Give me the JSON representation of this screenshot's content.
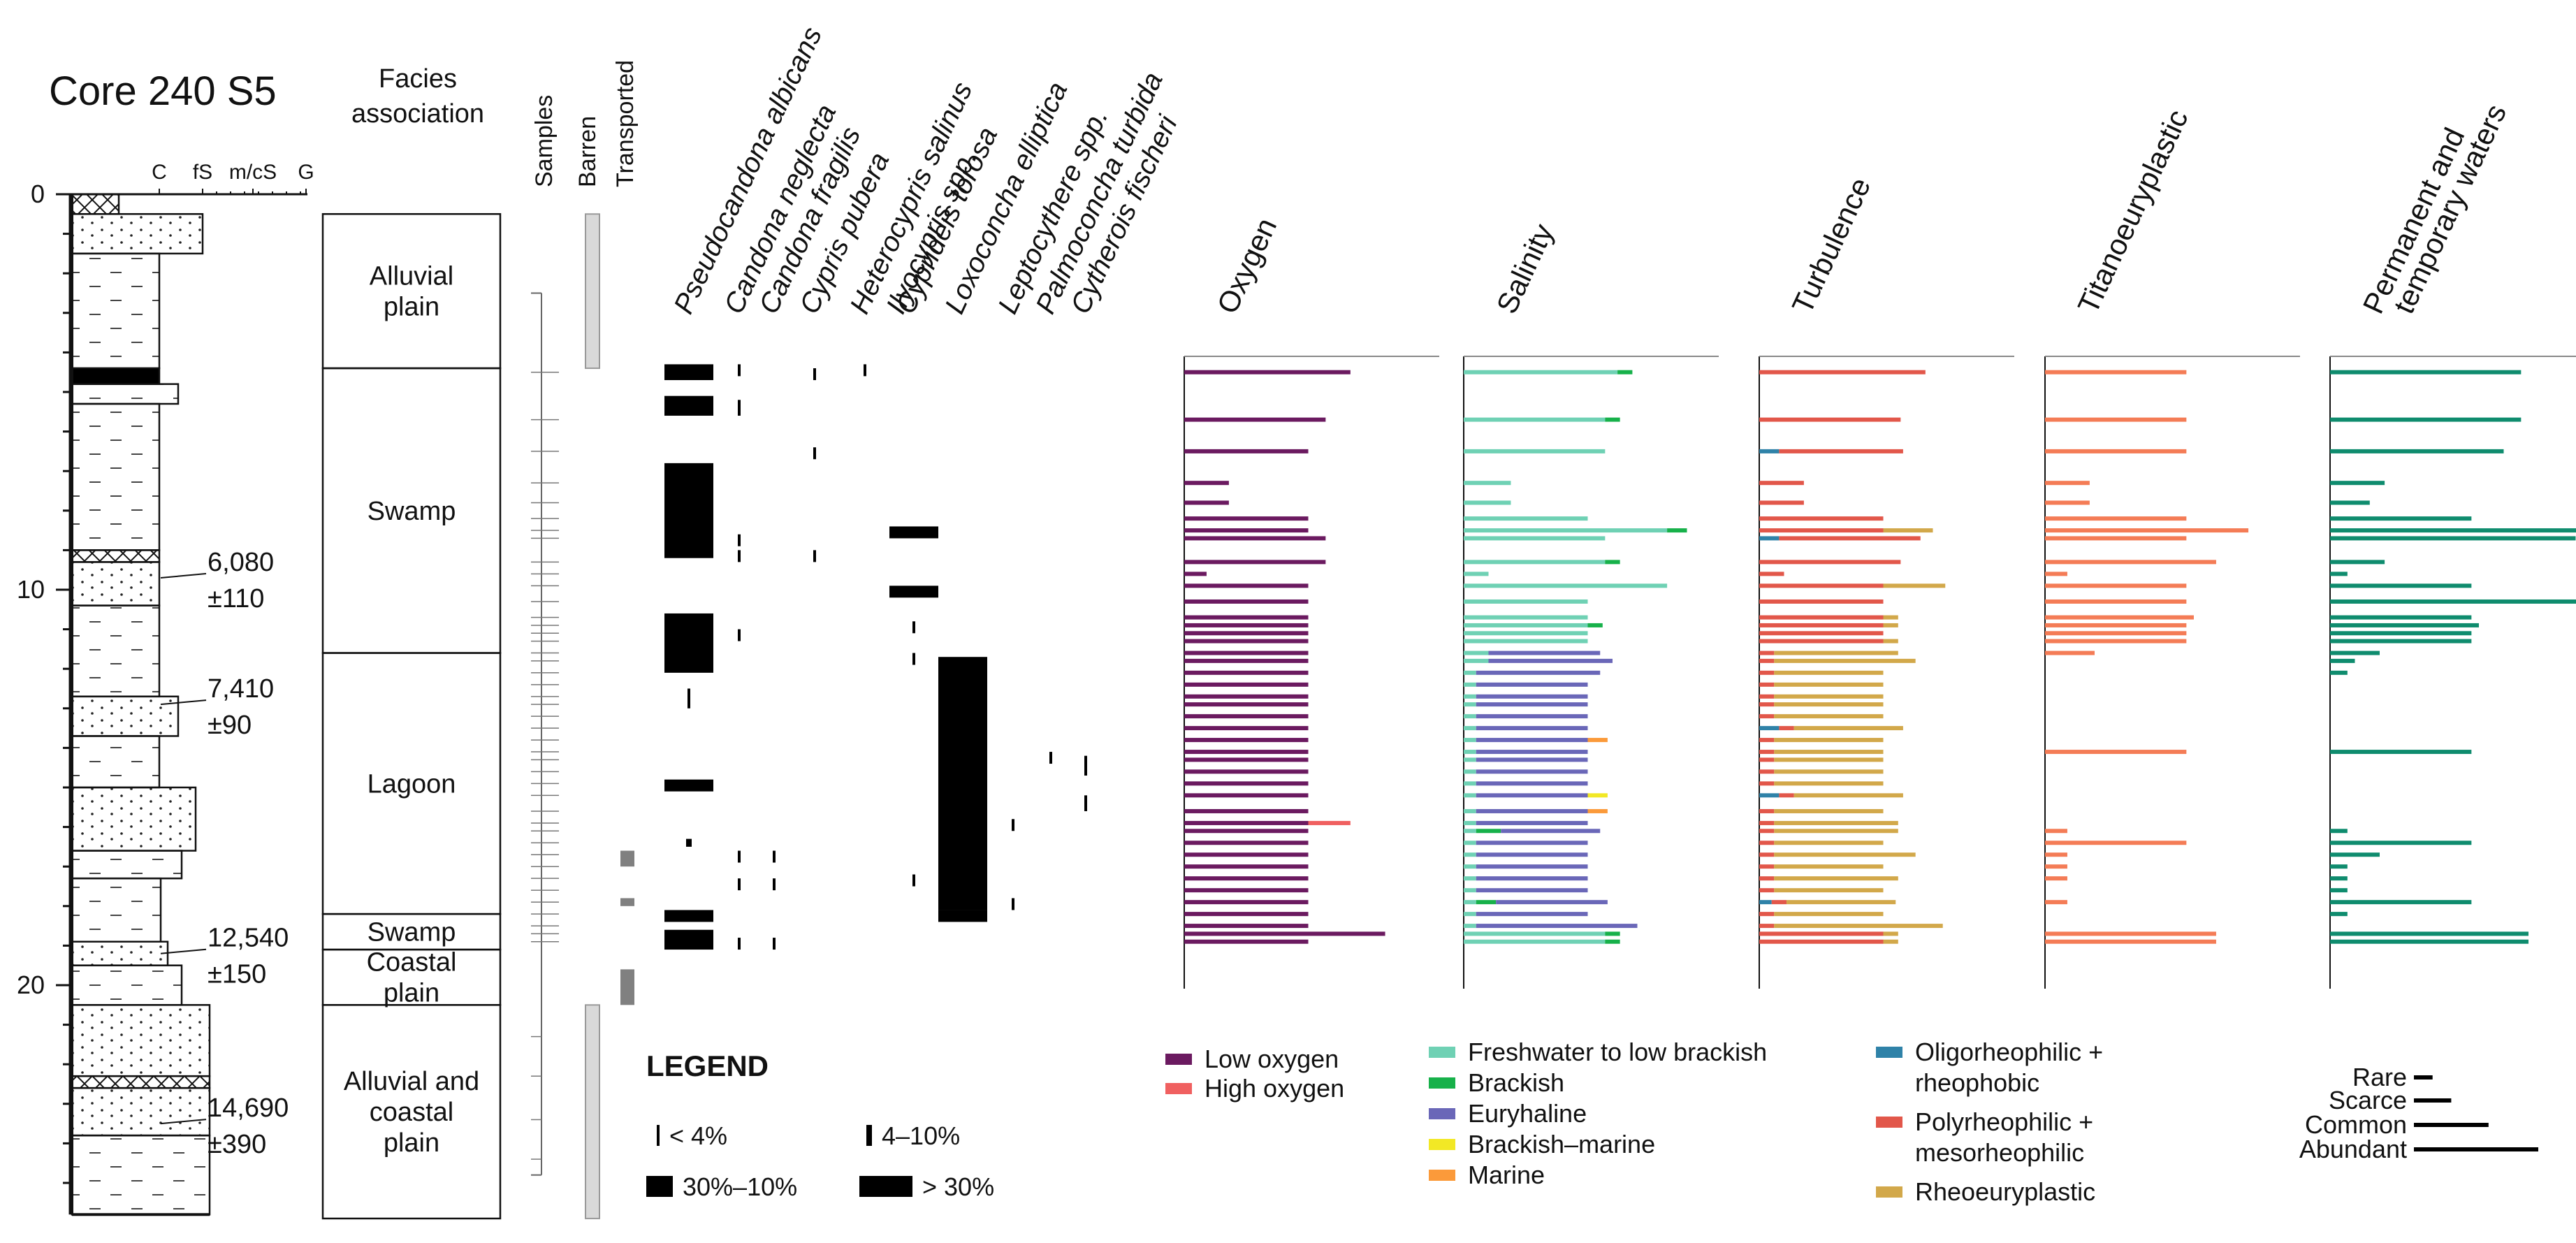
{
  "chart_data": {
    "type": "bar",
    "title": "Core 240 S5",
    "core_depth_axis": {
      "ylim": [
        0,
        25.5
      ],
      "ticks": [
        "0",
        "10",
        "20"
      ],
      "tick_values": [
        0,
        10,
        20
      ]
    },
    "grain_scale": [
      "C",
      "fS",
      "m/cS",
      "G"
    ],
    "radiocarbon_dates": [
      {
        "age": "6,080",
        "error": "±110",
        "depth": 9.7
      },
      {
        "age": "7,410",
        "error": "±90",
        "depth": 12.9
      },
      {
        "age": "12,540",
        "error": "±150",
        "depth": 19.2
      },
      {
        "age": "14,690",
        "error": "±390",
        "depth": 23.5
      }
    ],
    "facies_header": "Facies association",
    "facies": [
      {
        "name": "Alluvial plain",
        "lines": [
          "Alluvial",
          "plain"
        ],
        "top": 0.5,
        "bottom": 4.4
      },
      {
        "name": "Swamp",
        "lines": [
          "Swamp"
        ],
        "top": 4.4,
        "bottom": 11.6
      },
      {
        "name": "Lagoon",
        "lines": [
          "Lagoon"
        ],
        "top": 11.6,
        "bottom": 18.2
      },
      {
        "name": "Swamp",
        "lines": [
          "Swamp"
        ],
        "top": 18.2,
        "bottom": 19.1
      },
      {
        "name": "Coastal plain",
        "lines": [
          "Coastal",
          "plain"
        ],
        "top": 19.1,
        "bottom": 20.5
      },
      {
        "name": "Alluvial and coastal plain",
        "lines": [
          "Alluvial and",
          "coastal",
          "plain"
        ],
        "top": 20.5,
        "bottom": 25.9
      }
    ],
    "column_headers": [
      "Samples",
      "Barren",
      "Transported"
    ],
    "barren_intervals": [
      [
        0.5,
        4.4
      ],
      [
        20.5,
        25.9
      ]
    ],
    "transported_intervals": [
      [
        16.6,
        17.0
      ],
      [
        17.8,
        18.0
      ],
      [
        19.6,
        20.5
      ]
    ],
    "samples_range": [
      2.5,
      24.8
    ],
    "species": [
      {
        "name": "Pseudocandona albicans",
        "intervals": [
          [
            4.3,
            4.7,
            3
          ],
          [
            5.1,
            5.6,
            3
          ],
          [
            6.8,
            9.2,
            3
          ],
          [
            10.6,
            12.1,
            3
          ],
          [
            12.5,
            13.0,
            1
          ],
          [
            14.8,
            15.1,
            3
          ],
          [
            16.3,
            16.5,
            2
          ],
          [
            18.1,
            18.4,
            3
          ],
          [
            18.6,
            19.1,
            3
          ]
        ]
      },
      {
        "name": "Candona neglecta",
        "intervals": [
          [
            4.3,
            4.6,
            1
          ],
          [
            5.2,
            5.6,
            1
          ],
          [
            8.6,
            8.9,
            1
          ],
          [
            9.0,
            9.3,
            1
          ],
          [
            11.0,
            11.3,
            1
          ],
          [
            16.6,
            16.9,
            1
          ],
          [
            17.3,
            17.6,
            1
          ],
          [
            18.8,
            19.1,
            1
          ]
        ]
      },
      {
        "name": "Candona fragilis",
        "intervals": [
          [
            16.6,
            16.9,
            1
          ],
          [
            17.3,
            17.6,
            1
          ],
          [
            18.8,
            19.1,
            1
          ]
        ]
      },
      {
        "name": "Cypris pubera",
        "intervals": [
          [
            4.4,
            4.7,
            1
          ],
          [
            6.4,
            6.7,
            1
          ],
          [
            9.0,
            9.3,
            1
          ]
        ]
      },
      {
        "name": "Heterocypris salinus",
        "intervals": [
          [
            4.3,
            4.6,
            1
          ]
        ]
      },
      {
        "name": "Ilyocypris spp.",
        "intervals": []
      },
      {
        "name": "Cyprideis torosa",
        "intervals": [
          [
            8.4,
            8.7,
            3
          ],
          [
            9.9,
            10.2,
            3
          ],
          [
            10.8,
            11.1,
            1
          ],
          [
            11.6,
            11.9,
            1
          ],
          [
            17.2,
            17.5,
            1
          ]
        ]
      },
      {
        "name": "Loxoconcha elliptica",
        "intervals": [
          [
            11.7,
            18.1,
            3
          ],
          [
            18.1,
            18.4,
            3
          ]
        ]
      },
      {
        "name": "Leptocythere spp.",
        "intervals": [
          [
            15.8,
            16.1,
            1
          ],
          [
            17.8,
            18.1,
            1
          ]
        ]
      },
      {
        "name": "Palmoconcha turbida",
        "intervals": [
          [
            14.1,
            14.4,
            1
          ]
        ]
      },
      {
        "name": "Cytherois fischeri",
        "intervals": [
          [
            14.2,
            14.7,
            1
          ],
          [
            15.2,
            15.6,
            1
          ]
        ]
      }
    ],
    "panels": [
      {
        "title": "Oxygen",
        "title_lines": [
          "Oxygen"
        ],
        "categories": [
          "Low oxygen",
          "High oxygen"
        ],
        "colors": [
          "#6b1a60",
          "#f06060"
        ]
      },
      {
        "title": "Salinity",
        "title_lines": [
          "Salinity"
        ],
        "categories": [
          "Freshwater to low brackish",
          "Brackish",
          "Euryhaline",
          "Brackish–marine",
          "Marine"
        ],
        "colors": [
          "#6fd1b4",
          "#17b14a",
          "#6a67b8",
          "#f2e825",
          "#fb9a3a"
        ]
      },
      {
        "title": "Turbulence",
        "title_lines": [
          "Turbulence"
        ],
        "categories": [
          "Oligorheophilic + rheophobic",
          "Polyrheophilic + mesorheophilic",
          "Rheoeuryplastic"
        ],
        "colors": [
          "#2f82a8",
          "#e2574a",
          "#d2a84a"
        ]
      },
      {
        "title": "Titanoeuryplastic",
        "title_lines": [
          "Titanoeuryplastic"
        ],
        "categories": [
          "Titanoeuryplastic"
        ],
        "colors": [
          "#f47c56"
        ]
      },
      {
        "title": "Permanent and temporary waters",
        "title_lines": [
          "Permanent and",
          "temporary waters"
        ],
        "categories": [
          "Permanent and temporary waters"
        ],
        "colors": [
          "#0f8c6e"
        ]
      }
    ],
    "sample_depths": [
      4.5,
      5.7,
      6.5,
      7.3,
      7.8,
      8.2,
      8.5,
      8.7,
      9.3,
      9.6,
      9.9,
      10.3,
      10.7,
      10.9,
      11.1,
      11.3,
      11.6,
      11.8,
      12.1,
      12.4,
      12.7,
      12.9,
      13.2,
      13.5,
      13.8,
      14.1,
      14.3,
      14.6,
      14.9,
      15.2,
      15.6,
      15.9,
      16.1,
      16.4,
      16.7,
      17.0,
      17.3,
      17.6,
      17.9,
      18.2,
      18.5,
      18.7,
      18.9
    ],
    "oxygen_series": [
      {
        "name": "Low oxygen",
        "values": [
          0.67,
          0.57,
          0.5,
          0.18,
          0.18,
          0.5,
          0.5,
          0.57,
          0.57,
          0.09,
          0.5,
          0.5,
          0.5,
          0.5,
          0.5,
          0.5,
          0.5,
          0.5,
          0.5,
          0.5,
          0.5,
          0.5,
          0.5,
          0.5,
          0.5,
          0.5,
          0.5,
          0.5,
          0.5,
          0.5,
          0.5,
          0.5,
          0.5,
          0.5,
          0.5,
          0.5,
          0.5,
          0.5,
          0.5,
          0.5,
          0.5,
          0.81,
          0.5
        ]
      },
      {
        "name": "High oxygen",
        "values": [
          0,
          0,
          0,
          0,
          0,
          0,
          0,
          0,
          0,
          0,
          0,
          0,
          0,
          0,
          0,
          0,
          0,
          0,
          0,
          0,
          0,
          0,
          0,
          0,
          0,
          0,
          0,
          0,
          0,
          0,
          0,
          0.17,
          0,
          0,
          0,
          0,
          0,
          0,
          0,
          0,
          0,
          0,
          0
        ]
      }
    ],
    "salinity_series": [
      {
        "name": "Freshwater to low brackish",
        "values": [
          0.62,
          0.57,
          0.57,
          0.19,
          0.19,
          0.5,
          0.82,
          0.57,
          0.57,
          0.1,
          0.82,
          0.5,
          0.5,
          0.5,
          0.5,
          0.5,
          0.1,
          0.1,
          0.05,
          0.05,
          0.05,
          0.05,
          0.05,
          0.05,
          0.05,
          0.05,
          0.05,
          0.05,
          0.05,
          0.05,
          0.05,
          0.05,
          0.05,
          0.05,
          0.05,
          0.05,
          0.05,
          0.05,
          0.05,
          0.05,
          0.05,
          0.57,
          0.57
        ]
      },
      {
        "name": "Brackish",
        "values": [
          0.06,
          0.06,
          0,
          0,
          0,
          0,
          0.08,
          0,
          0.06,
          0,
          0,
          0,
          0,
          0.06,
          0,
          0,
          0,
          0,
          0,
          0,
          0,
          0,
          0,
          0,
          0,
          0,
          0,
          0,
          0,
          0,
          0,
          0,
          0.1,
          0,
          0,
          0,
          0,
          0,
          0.08,
          0,
          0,
          0.06,
          0.06
        ]
      },
      {
        "name": "Euryhaline",
        "values": [
          0,
          0,
          0,
          0,
          0,
          0,
          0,
          0,
          0,
          0,
          0,
          0,
          0,
          0,
          0,
          0,
          0.45,
          0.5,
          0.5,
          0.45,
          0.45,
          0.45,
          0.45,
          0.45,
          0.45,
          0.45,
          0.45,
          0.45,
          0.45,
          0.45,
          0.45,
          0.45,
          0.4,
          0.45,
          0.45,
          0.45,
          0.45,
          0.45,
          0.45,
          0.45,
          0.65,
          0,
          0
        ]
      },
      {
        "name": "Brackish–marine",
        "values": [
          0,
          0,
          0,
          0,
          0,
          0,
          0,
          0,
          0,
          0,
          0,
          0,
          0,
          0,
          0,
          0,
          0,
          0,
          0,
          0,
          0,
          0,
          0,
          0,
          0,
          0,
          0,
          0,
          0,
          0.08,
          0,
          0,
          0,
          0,
          0,
          0,
          0,
          0,
          0,
          0,
          0,
          0,
          0
        ]
      },
      {
        "name": "Marine",
        "values": [
          0,
          0,
          0,
          0,
          0,
          0,
          0,
          0,
          0,
          0,
          0,
          0,
          0,
          0,
          0,
          0,
          0,
          0,
          0,
          0,
          0,
          0,
          0,
          0,
          0.08,
          0,
          0,
          0,
          0,
          0,
          0.08,
          0,
          0,
          0,
          0,
          0,
          0,
          0,
          0,
          0,
          0,
          0,
          0
        ]
      }
    ],
    "turbulence_series": [
      {
        "name": "Oligorheophilic + rheophobic",
        "values": [
          0,
          0,
          0.08,
          0,
          0,
          0,
          0,
          0.08,
          0,
          0,
          0,
          0,
          0,
          0,
          0,
          0,
          0,
          0,
          0,
          0,
          0,
          0,
          0,
          0.08,
          0,
          0,
          0,
          0,
          0,
          0.08,
          0,
          0,
          0,
          0,
          0,
          0,
          0,
          0,
          0.05,
          0,
          0,
          0,
          0
        ]
      },
      {
        "name": "Polyrheophilic + mesorheophilic",
        "values": [
          0.67,
          0.57,
          0.5,
          0.18,
          0.18,
          0.5,
          0.5,
          0.57,
          0.57,
          0.1,
          0.5,
          0.5,
          0.5,
          0.5,
          0.5,
          0.5,
          0.06,
          0.06,
          0.06,
          0.06,
          0.06,
          0.06,
          0.06,
          0.06,
          0.06,
          0.06,
          0.06,
          0.06,
          0.06,
          0.06,
          0.06,
          0.06,
          0.06,
          0.06,
          0.06,
          0.06,
          0.06,
          0.06,
          0.06,
          0.06,
          0.06,
          0.5,
          0.5
        ]
      },
      {
        "name": "Rheoeuryplastic",
        "values": [
          0,
          0,
          0,
          0,
          0,
          0,
          0.2,
          0,
          0,
          0,
          0.25,
          0,
          0.06,
          0.06,
          0,
          0.06,
          0.5,
          0.57,
          0.44,
          0.44,
          0.44,
          0.44,
          0.44,
          0.44,
          0.44,
          0.44,
          0.44,
          0.44,
          0.44,
          0.44,
          0.44,
          0.5,
          0.5,
          0.44,
          0.57,
          0.44,
          0.5,
          0.44,
          0.44,
          0.44,
          0.68,
          0.06,
          0.06
        ]
      }
    ],
    "titanoeuryplastic_values": [
      0.57,
      0.57,
      0.57,
      0.18,
      0.18,
      0.57,
      0.82,
      0.57,
      0.69,
      0.09,
      0.57,
      0.57,
      0.6,
      0.57,
      0.57,
      0.57,
      0.2,
      0,
      0,
      0,
      0,
      0,
      0,
      0,
      0,
      0.57,
      0,
      0,
      0,
      0,
      0,
      0,
      0.09,
      0.57,
      0.09,
      0.09,
      0.09,
      0,
      0.09,
      0,
      0,
      0.69,
      0.69
    ],
    "permanent_temporary_values": [
      0.77,
      0.77,
      0.7,
      0.22,
      0.16,
      0.57,
      1.0,
      0.99,
      0.22,
      0.07,
      0.57,
      1.0,
      0.57,
      0.6,
      0.57,
      0.57,
      0.2,
      0.1,
      0.07,
      0,
      0,
      0,
      0,
      0,
      0,
      0.57,
      0,
      0,
      0,
      0,
      0,
      0,
      0.07,
      0.57,
      0.2,
      0.07,
      0.07,
      0.07,
      0.57,
      0.07,
      0,
      0.8,
      0.8
    ],
    "relative_abundance_legend": {
      "title": "LEGEND",
      "items": [
        {
          "label": "< 4%",
          "level": 1
        },
        {
          "label": "4–10%",
          "level": 2
        },
        {
          "label": "30%–10%",
          "level": 3
        },
        {
          "label": "> 30%",
          "level": 4
        }
      ]
    },
    "frequency_legend": [
      {
        "label": "Rare",
        "value": 0.15
      },
      {
        "label": "Scarce",
        "value": 0.3
      },
      {
        "label": "Common",
        "value": 0.6
      },
      {
        "label": "Abundant",
        "value": 1.0
      }
    ]
  }
}
